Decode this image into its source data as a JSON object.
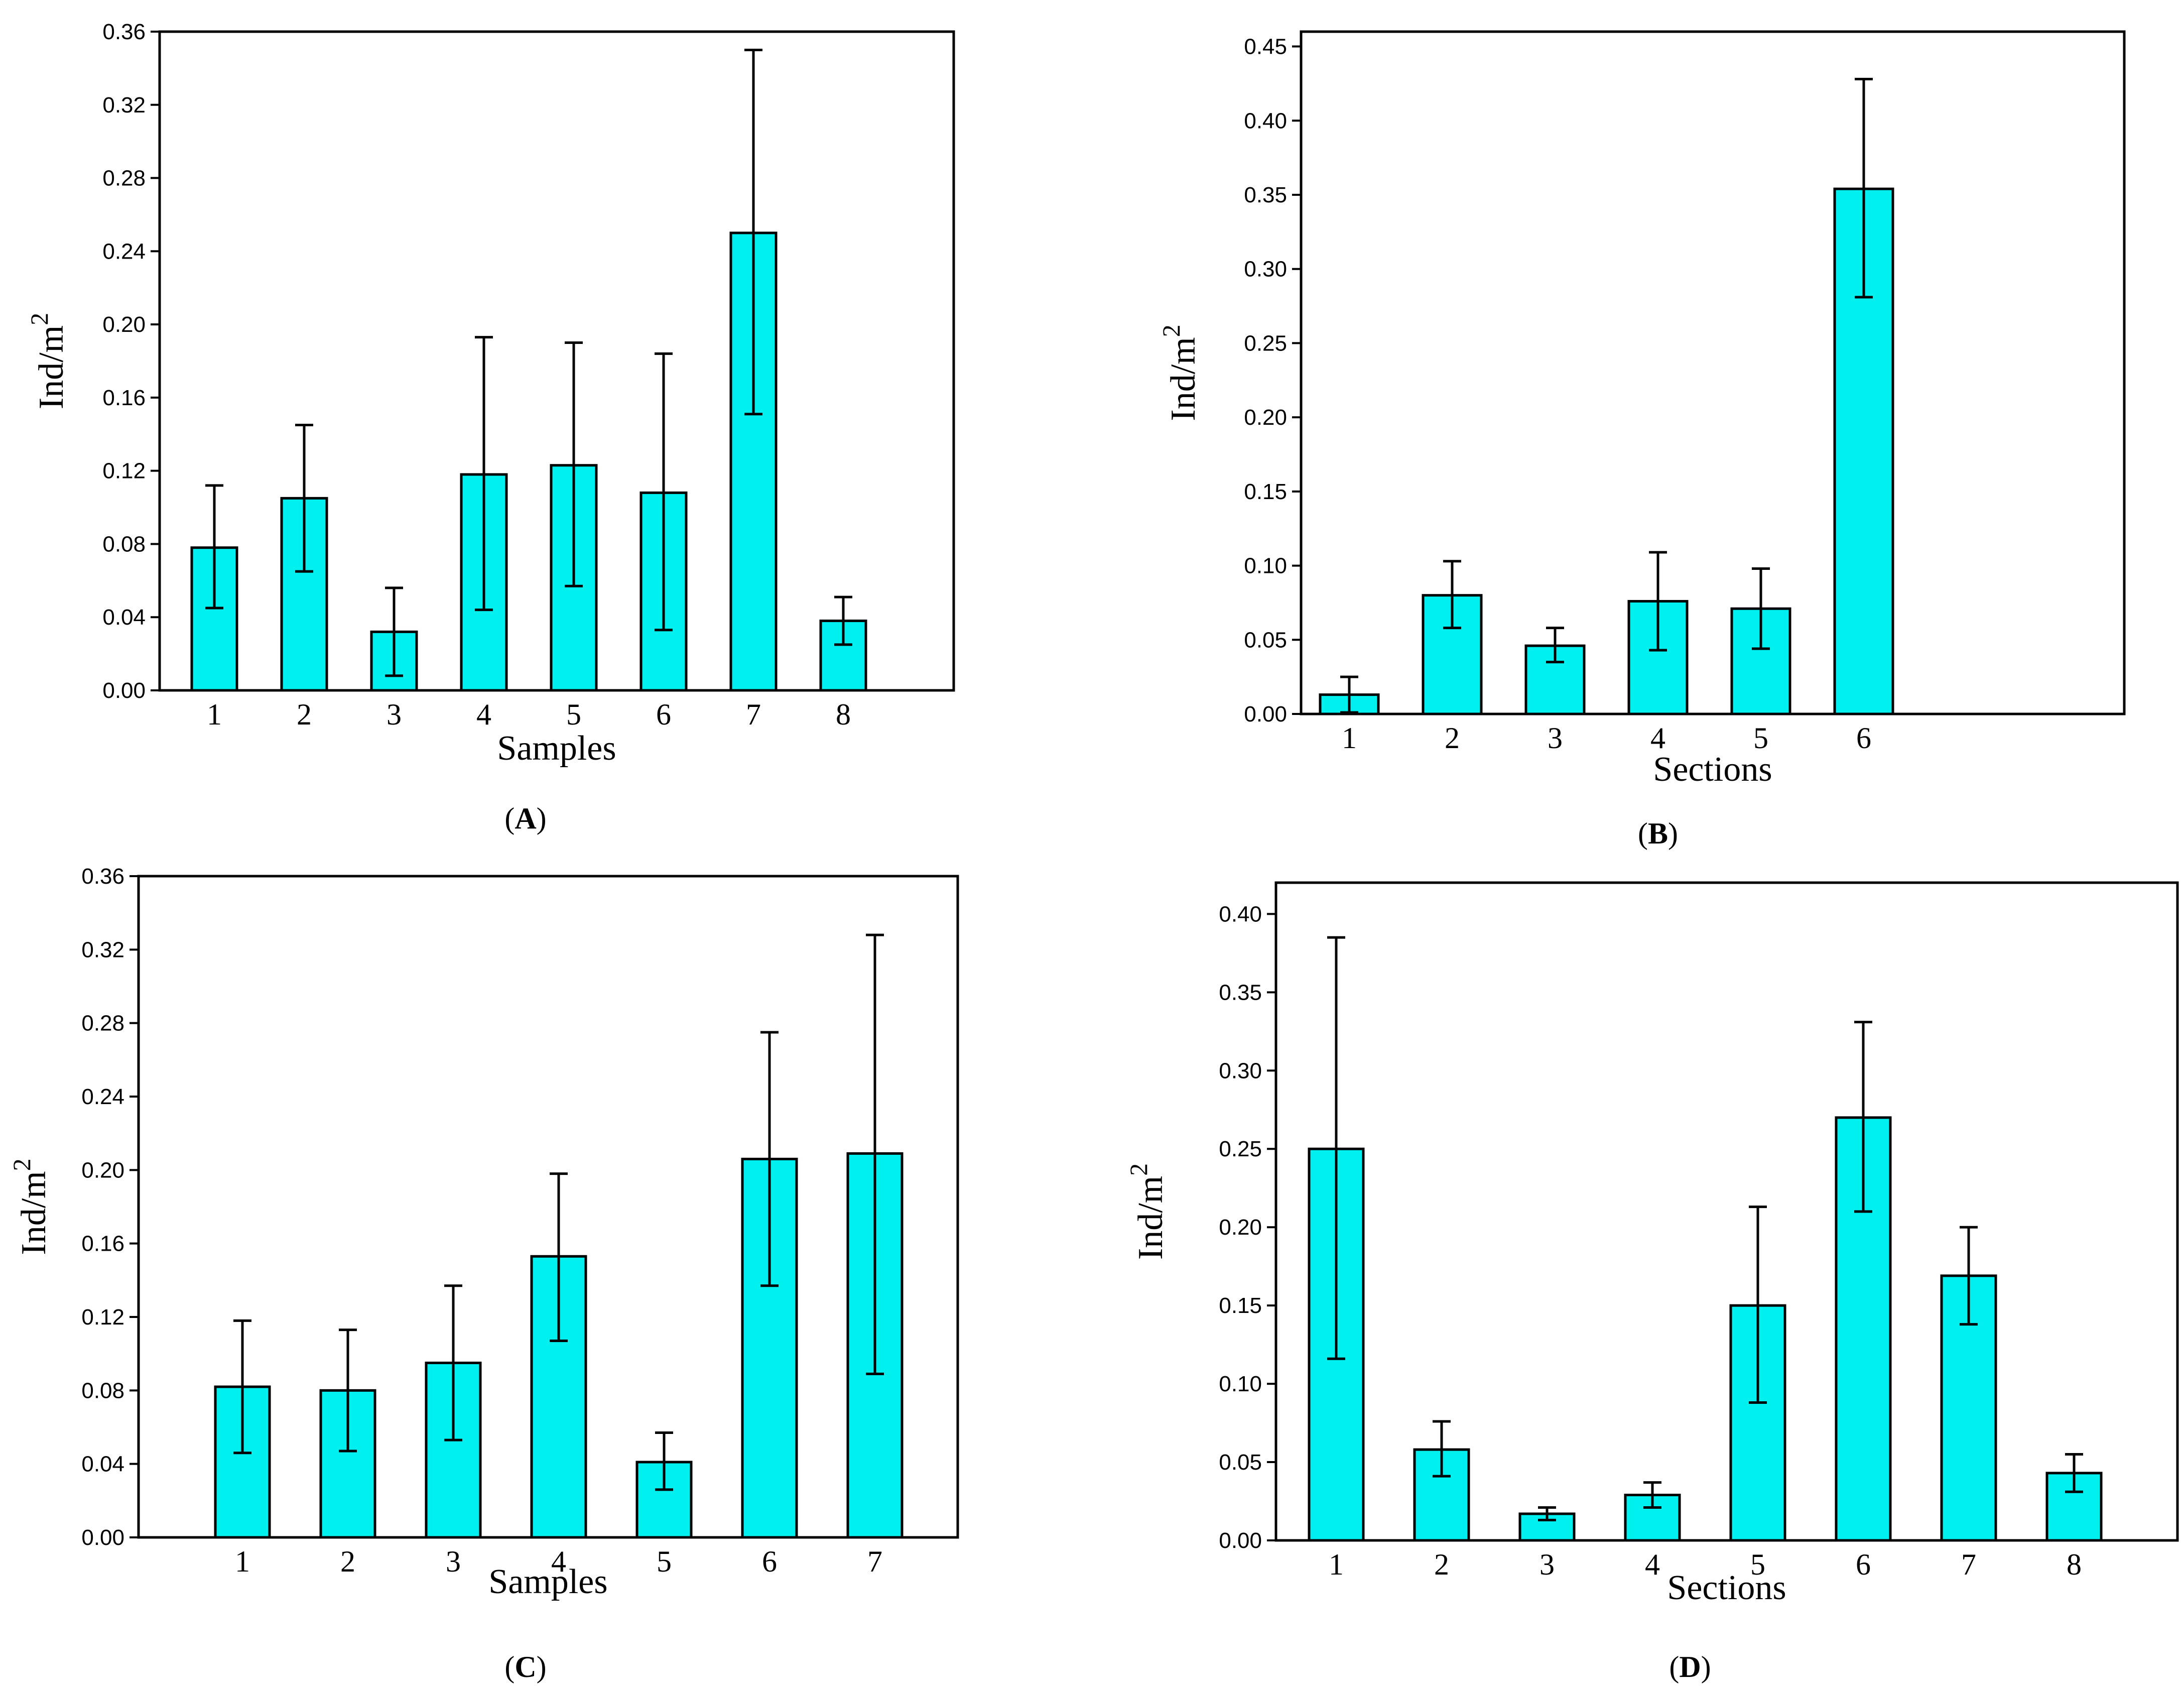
{
  "colors": {
    "bar_fill": "#00f0f0",
    "bar_stroke": "#000000",
    "frame": "#000000"
  },
  "chart_data": [
    {
      "id": "A",
      "panel_label": "A",
      "type": "bar",
      "xlabel": "Samples",
      "ylabel": "Ind/m",
      "ylabel_superscript": "2",
      "ylim": [
        0,
        0.36
      ],
      "yticks": [
        "0.00",
        "0.04",
        "0.08",
        "0.12",
        "0.16",
        "0.20",
        "0.24",
        "0.28",
        "0.32",
        "0.36"
      ],
      "categories": [
        "1",
        "2",
        "3",
        "4",
        "5",
        "6",
        "7",
        "8"
      ],
      "values": [
        0.078,
        0.105,
        0.032,
        0.118,
        0.123,
        0.108,
        0.25,
        0.038
      ],
      "error_low": [
        0.045,
        0.065,
        0.008,
        0.044,
        0.057,
        0.033,
        0.151,
        0.025
      ],
      "error_high": [
        0.112,
        0.145,
        0.056,
        0.193,
        0.19,
        0.184,
        0.35,
        0.051
      ]
    },
    {
      "id": "B",
      "panel_label": "B",
      "type": "bar",
      "xlabel": "Sections",
      "ylabel": "Ind/m",
      "ylabel_superscript": "2",
      "ylim": [
        0,
        0.46
      ],
      "yticks": [
        "0.00",
        "0.05",
        "0.10",
        "0.15",
        "0.20",
        "0.25",
        "0.30",
        "0.35",
        "0.40",
        "0.45"
      ],
      "categories": [
        "1",
        "2",
        "3",
        "4",
        "5",
        "6"
      ],
      "values": [
        0.013,
        0.08,
        0.046,
        0.076,
        0.071,
        0.354
      ],
      "error_low": [
        0.001,
        0.058,
        0.035,
        0.043,
        0.044,
        0.281
      ],
      "error_high": [
        0.025,
        0.103,
        0.058,
        0.109,
        0.098,
        0.428
      ]
    },
    {
      "id": "C",
      "panel_label": "C",
      "type": "bar",
      "xlabel": "Samples",
      "ylabel": "Ind/m",
      "ylabel_superscript": "2",
      "ylim": [
        0,
        0.36
      ],
      "yticks": [
        "0.00",
        "0.04",
        "0.08",
        "0.12",
        "0.16",
        "0.20",
        "0.24",
        "0.28",
        "0.32",
        "0.36"
      ],
      "categories": [
        "1",
        "2",
        "3",
        "4",
        "5",
        "6",
        "7"
      ],
      "values": [
        0.082,
        0.08,
        0.095,
        0.153,
        0.041,
        0.206,
        0.209
      ],
      "error_low": [
        0.046,
        0.047,
        0.053,
        0.107,
        0.026,
        0.137,
        0.089
      ],
      "error_high": [
        0.118,
        0.113,
        0.137,
        0.198,
        0.057,
        0.275,
        0.328
      ]
    },
    {
      "id": "D",
      "panel_label": "D",
      "type": "bar",
      "xlabel": "Sections",
      "ylabel": "Ind/m",
      "ylabel_superscript": "2",
      "ylim": [
        0,
        0.42
      ],
      "yticks": [
        "0.00",
        "0.05",
        "0.10",
        "0.15",
        "0.20",
        "0.25",
        "0.30",
        "0.35",
        "0.40"
      ],
      "categories": [
        "1",
        "2",
        "3",
        "4",
        "5",
        "6",
        "7",
        "8"
      ],
      "values": [
        0.25,
        0.058,
        0.017,
        0.029,
        0.15,
        0.27,
        0.169,
        0.043
      ],
      "error_low": [
        0.116,
        0.041,
        0.013,
        0.021,
        0.088,
        0.21,
        0.138,
        0.031
      ],
      "error_high": [
        0.385,
        0.076,
        0.021,
        0.037,
        0.213,
        0.331,
        0.2,
        0.055
      ]
    }
  ]
}
